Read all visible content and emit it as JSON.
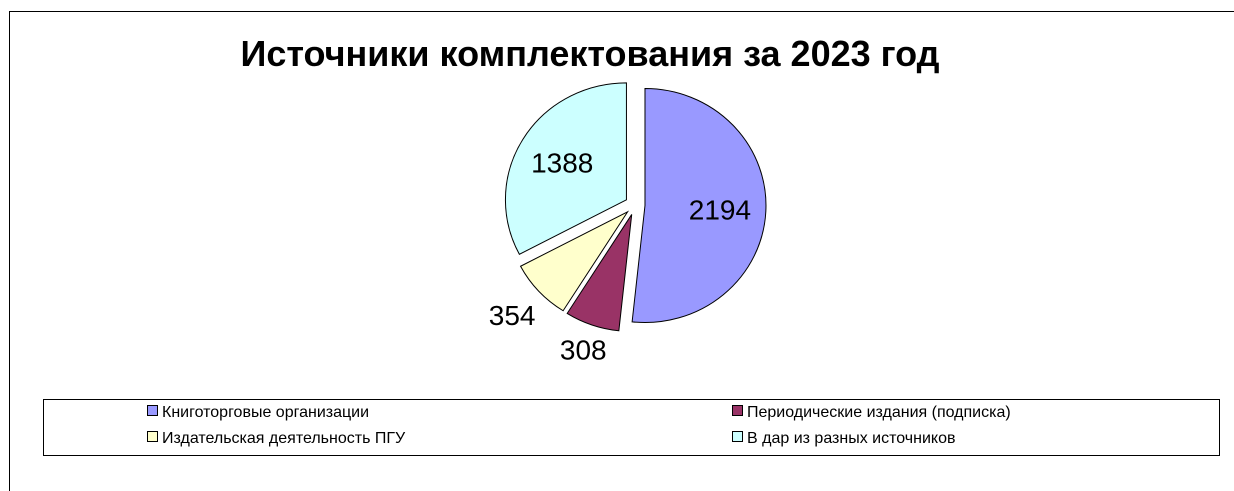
{
  "chart_data": {
    "type": "pie",
    "title": "Источники комплектования за 2023 год",
    "categories": [
      "Книготорговые организации",
      "Периодические  издания  (подписка)",
      "Издательская деятельность ПГУ",
      "В дар из разных источников"
    ],
    "values": [
      2194,
      308,
      354,
      1388
    ],
    "data_labels": [
      "2194",
      "308",
      "354",
      "1388"
    ],
    "colors": [
      "#9999ff",
      "#993366",
      "#ffffcc",
      "#ccffff"
    ],
    "exploded": true,
    "legend_position": "bottom"
  }
}
